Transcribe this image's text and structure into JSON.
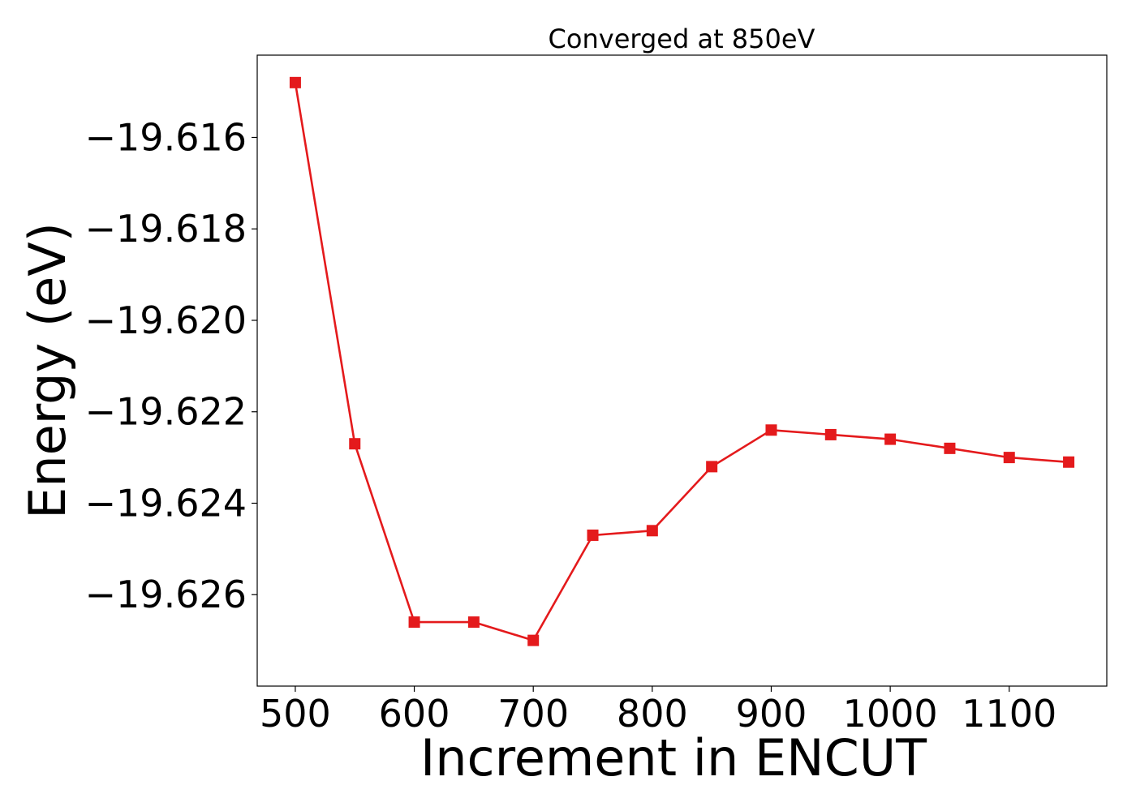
{
  "chart_data": {
    "type": "line",
    "title": "Converged at 850eV",
    "xlabel": "Increment in ENCUT",
    "ylabel": "Energy (eV)",
    "x": [
      500,
      550,
      600,
      650,
      700,
      750,
      800,
      850,
      900,
      950,
      1000,
      1050,
      1100,
      1150
    ],
    "series": [
      {
        "values": [
          -19.6148,
          -19.6227,
          -19.6266,
          -19.6266,
          -19.627,
          -19.6247,
          -19.6246,
          -19.6232,
          -19.6224,
          -19.6225,
          -19.6226,
          -19.6228,
          -19.623,
          -19.6231
        ],
        "color": "#e41a1c",
        "marker": "square"
      }
    ],
    "xticks": [
      500,
      600,
      700,
      800,
      900,
      1000,
      1100
    ],
    "xtick_labels": [
      "500",
      "600",
      "700",
      "800",
      "900",
      "1000",
      "1100"
    ],
    "yticks": [
      -19.616,
      -19.618,
      -19.62,
      -19.622,
      -19.624,
      -19.626
    ],
    "ytick_labels": [
      "−19.616",
      "−19.618",
      "−19.620",
      "−19.622",
      "−19.624",
      "−19.626"
    ],
    "xlim": [
      468,
      1182
    ],
    "ylim": [
      -19.628,
      -19.6142
    ],
    "grid": false,
    "legend": "none"
  }
}
